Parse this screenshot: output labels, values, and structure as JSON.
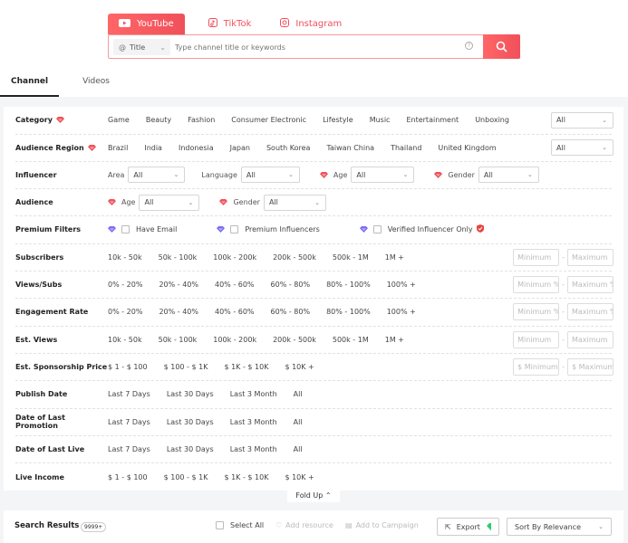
{
  "platforms": [
    {
      "label": "YouTube",
      "icon": "youtube-icon"
    },
    {
      "label": "TikTok",
      "icon": "tiktok-icon"
    },
    {
      "label": "Instagram",
      "icon": "instagram-icon"
    }
  ],
  "search": {
    "type": "Title",
    "placeholder": "Type channel title or keywords"
  },
  "tabs": [
    "Channel",
    "Videos"
  ],
  "filters": {
    "category": {
      "label": "Category",
      "options": [
        "Game",
        "Beauty",
        "Fashion",
        "Consumer Electronic",
        "Lifestyle",
        "Music",
        "Entertainment",
        "Unboxing"
      ],
      "select": "All"
    },
    "region": {
      "label": "Audience Region",
      "options": [
        "Brazil",
        "India",
        "Indonesia",
        "Japan",
        "South Korea",
        "Taiwan China",
        "Thailand",
        "United Kingdom"
      ],
      "select": "All"
    },
    "influencer": {
      "label": "Influencer",
      "area_label": "Area",
      "area": "All",
      "language_label": "Language",
      "language": "All",
      "age_label": "Age",
      "age": "All",
      "gender_label": "Gender",
      "gender": "All"
    },
    "audience": {
      "label": "Audience",
      "age_label": "Age",
      "age": "All",
      "gender_label": "Gender",
      "gender": "All"
    },
    "premium": {
      "label": "Premium Filters",
      "options": [
        "Have Email",
        "Premium Influencers",
        "Verified Influencer Only"
      ]
    },
    "subscribers": {
      "label": "Subscribers",
      "options": [
        "10k - 50k",
        "50k - 100k",
        "100k - 200k",
        "200k - 500k",
        "500k - 1M",
        "1M +"
      ],
      "min": "Minimum",
      "max": "Maximum"
    },
    "views_subs": {
      "label": "Views/Subs",
      "options": [
        "0% - 20%",
        "20% - 40%",
        "40% - 60%",
        "60% - 80%",
        "80% - 100%",
        "100% +"
      ],
      "min": "Minimum %",
      "max": "Maximum %"
    },
    "engagement": {
      "label": "Engagement Rate",
      "options": [
        "0% - 20%",
        "20% - 40%",
        "40% - 60%",
        "60% - 80%",
        "80% - 100%",
        "100% +"
      ],
      "min": "Minimum %",
      "max": "Maximum %"
    },
    "est_views": {
      "label": "Est. Views",
      "options": [
        "10k - 50k",
        "50k - 100k",
        "100k - 200k",
        "200k - 500k",
        "500k - 1M",
        "1M +"
      ],
      "min": "Minimum",
      "max": "Maximum"
    },
    "sponsorship": {
      "label": "Est. Sponsorship Price",
      "options": [
        "$ 1 - $ 100",
        "$ 100 - $ 1K",
        "$ 1K - $ 10K",
        "$ 10K +"
      ],
      "min": "$ Minimum",
      "max": "$ Maximum"
    },
    "publish": {
      "label": "Publish Date",
      "options": [
        "Last 7 Days",
        "Last 30 Days",
        "Last 3 Month",
        "All"
      ]
    },
    "last_promo": {
      "label": "Date of Last Promotion",
      "options": [
        "Last 7 Days",
        "Last 30 Days",
        "Last 3 Month",
        "All"
      ]
    },
    "last_live": {
      "label": "Date of Last Live",
      "options": [
        "Last 7 Days",
        "Last 30 Days",
        "Last 3 Month",
        "All"
      ]
    },
    "live_income": {
      "label": "Live Income",
      "options": [
        "$ 1 - $ 100",
        "$ 100 - $ 1K",
        "$ 1K - $ 10K",
        "$ 10K +"
      ]
    }
  },
  "fold_up": "Fold Up",
  "results": {
    "title": "Search Results",
    "count": "9999+",
    "select_all": "Select All",
    "add_resource": "Add resource",
    "add_campaign": "Add to Campaign",
    "export": "Export",
    "sort": "Sort By Relevance"
  },
  "colors": {
    "accent": "#f0505a",
    "gem_red": "#f0505a",
    "gem_purple": "#7b6cf6",
    "gem_green": "#2ecc71"
  }
}
